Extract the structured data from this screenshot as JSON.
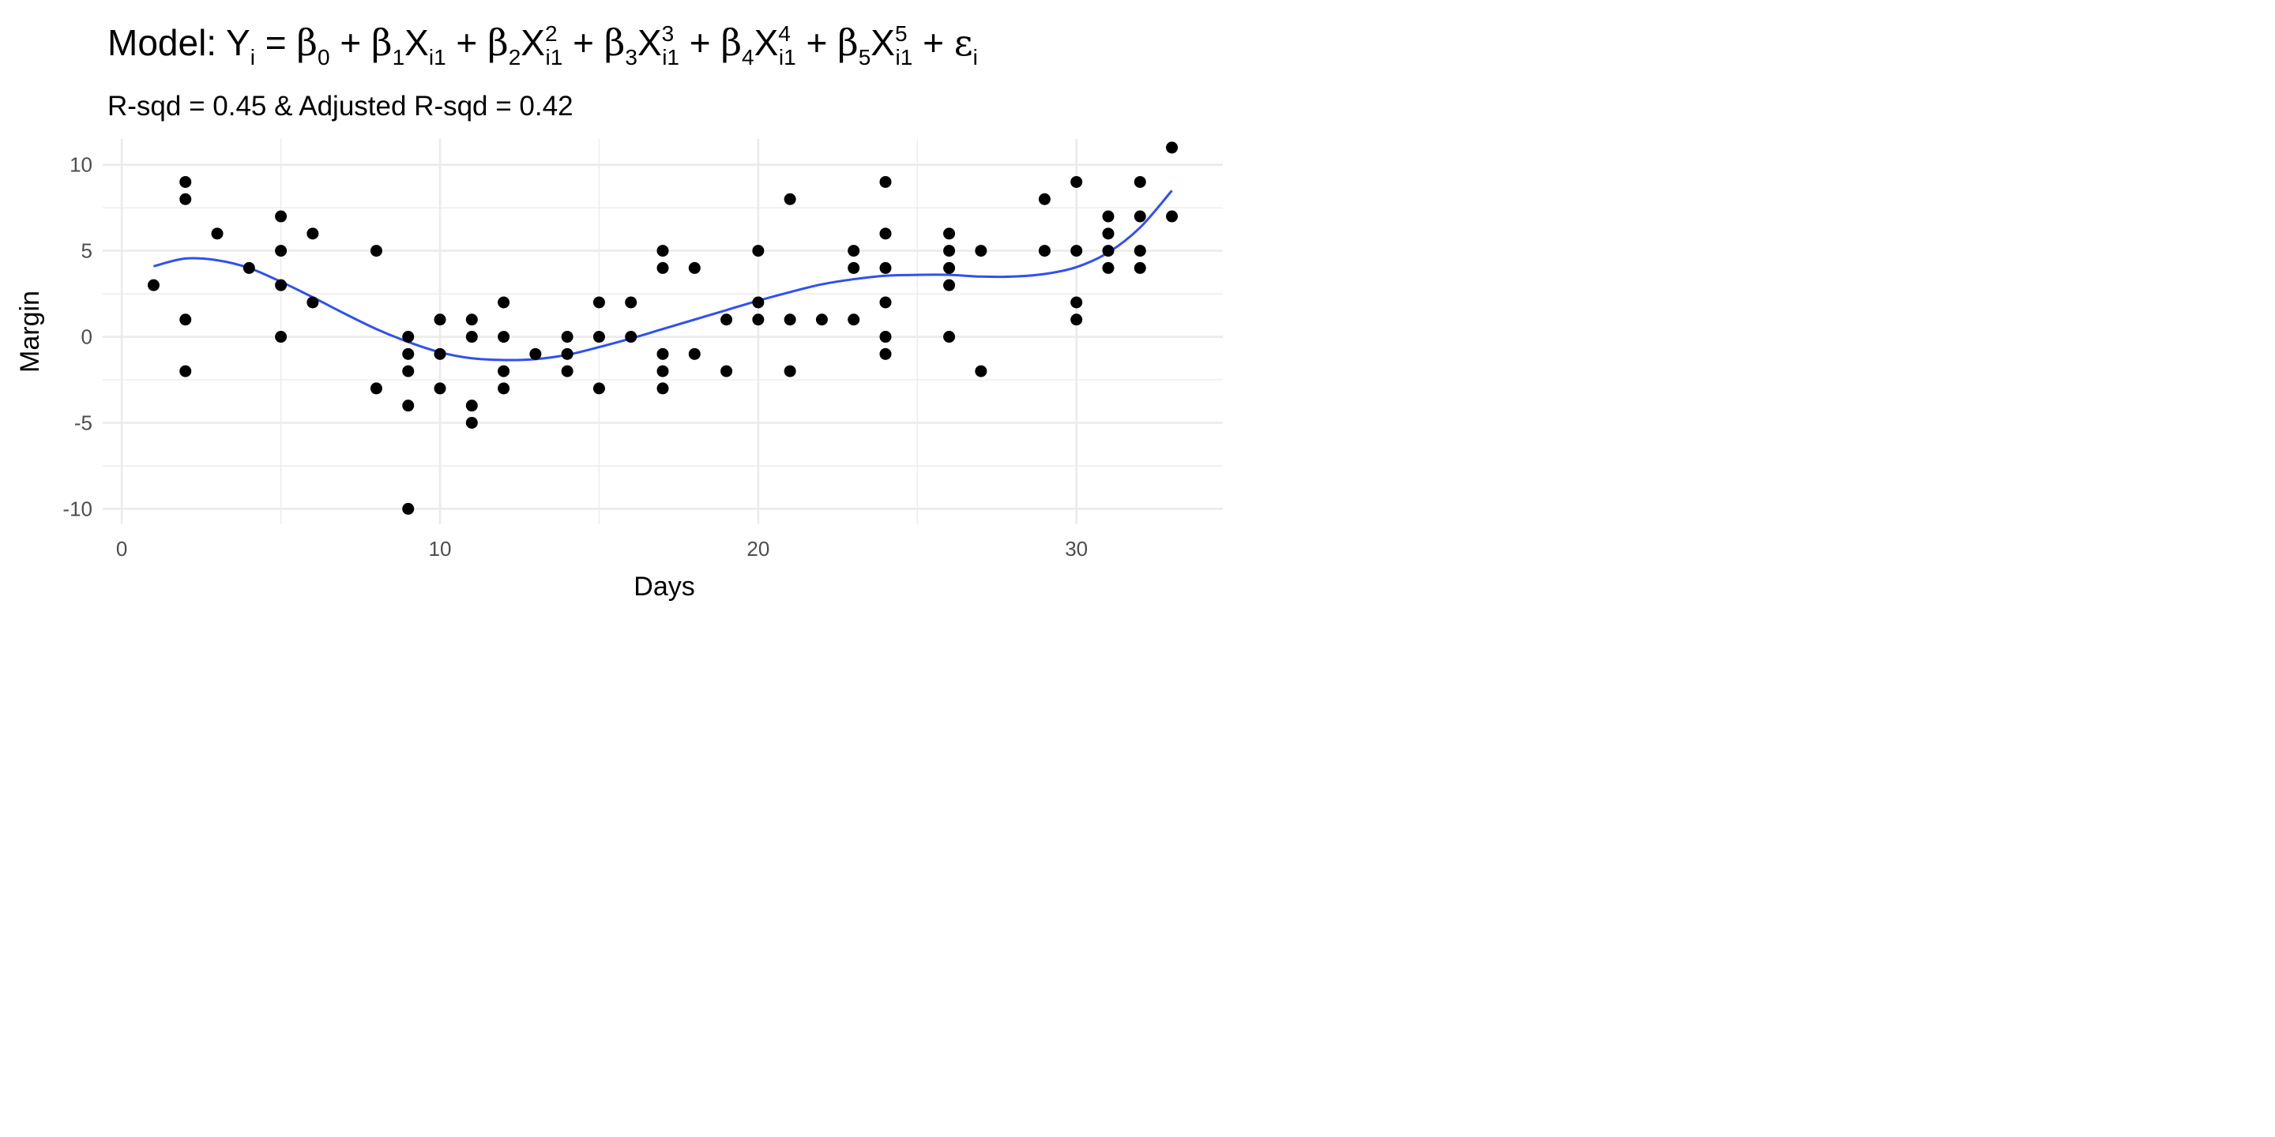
{
  "chart_data": {
    "type": "scatter",
    "title": "Model: Yᵢ = β₀ + β₁Xᵢ₁ + β₂Xᵢ₁² + β₃Xᵢ₁³ + β₄Xᵢ₁⁴ + β₅Xᵢ₁⁵ + εᵢ",
    "title_parts": {
      "lead": "Model: ",
      "y": "Y",
      "i": "i",
      "eq": " = ",
      "beta": "β",
      "x": "X",
      "i1": "i1",
      "plus": " + ",
      "eps": "ε",
      "b0": "0",
      "b1": "1",
      "b2": "2",
      "b3": "3",
      "b4": "4",
      "b5": "5",
      "p2": "2",
      "p3": "3",
      "p4": "4",
      "p5": "5"
    },
    "subtitle": "R-sqd = 0.45 & Adjusted R-sqd = 0.42",
    "xlabel": "Days",
    "ylabel": "Margin",
    "xlim": [
      -0.6,
      34.6
    ],
    "ylim": [
      -10.9,
      11.5
    ],
    "xticks": [
      "0",
      "10",
      "20",
      "30"
    ],
    "xtick_values": [
      0,
      10,
      20,
      30
    ],
    "yticks": [
      "10",
      "5",
      "0",
      "-5",
      "-10"
    ],
    "ytick_values": [
      10,
      5,
      0,
      -5,
      -10
    ],
    "grid": true,
    "legend": "none",
    "colors": {
      "points": "#000000",
      "fit": "#3050f0",
      "grid": "#ebebeb"
    },
    "points": [
      {
        "x": 1,
        "y": 3
      },
      {
        "x": 2,
        "y": 9
      },
      {
        "x": 2,
        "y": 8
      },
      {
        "x": 2,
        "y": 1
      },
      {
        "x": 2,
        "y": -2
      },
      {
        "x": 3,
        "y": 6
      },
      {
        "x": 4,
        "y": 4
      },
      {
        "x": 5,
        "y": 7
      },
      {
        "x": 5,
        "y": 5
      },
      {
        "x": 5,
        "y": 3
      },
      {
        "x": 5,
        "y": 0
      },
      {
        "x": 6,
        "y": 6
      },
      {
        "x": 6,
        "y": 2
      },
      {
        "x": 8,
        "y": 5
      },
      {
        "x": 8,
        "y": -3
      },
      {
        "x": 9,
        "y": 0
      },
      {
        "x": 9,
        "y": -1
      },
      {
        "x": 9,
        "y": -2
      },
      {
        "x": 9,
        "y": -4
      },
      {
        "x": 9,
        "y": -10
      },
      {
        "x": 10,
        "y": 1
      },
      {
        "x": 10,
        "y": -1
      },
      {
        "x": 10,
        "y": -3
      },
      {
        "x": 11,
        "y": 1
      },
      {
        "x": 11,
        "y": 0
      },
      {
        "x": 11,
        "y": -4
      },
      {
        "x": 11,
        "y": -5
      },
      {
        "x": 12,
        "y": 2
      },
      {
        "x": 12,
        "y": 0
      },
      {
        "x": 12,
        "y": -2
      },
      {
        "x": 12,
        "y": -3
      },
      {
        "x": 13,
        "y": -1
      },
      {
        "x": 14,
        "y": 0
      },
      {
        "x": 14,
        "y": -1
      },
      {
        "x": 14,
        "y": -2
      },
      {
        "x": 15,
        "y": 2
      },
      {
        "x": 15,
        "y": 0
      },
      {
        "x": 15,
        "y": -3
      },
      {
        "x": 16,
        "y": 2
      },
      {
        "x": 16,
        "y": 0
      },
      {
        "x": 17,
        "y": 5
      },
      {
        "x": 17,
        "y": 4
      },
      {
        "x": 17,
        "y": -1
      },
      {
        "x": 17,
        "y": -2
      },
      {
        "x": 17,
        "y": -3
      },
      {
        "x": 18,
        "y": 4
      },
      {
        "x": 18,
        "y": -1
      },
      {
        "x": 19,
        "y": 1
      },
      {
        "x": 19,
        "y": -2
      },
      {
        "x": 20,
        "y": 5
      },
      {
        "x": 20,
        "y": 2
      },
      {
        "x": 20,
        "y": 1
      },
      {
        "x": 21,
        "y": 8
      },
      {
        "x": 21,
        "y": 1
      },
      {
        "x": 21,
        "y": -2
      },
      {
        "x": 22,
        "y": 1
      },
      {
        "x": 23,
        "y": 5
      },
      {
        "x": 23,
        "y": 4
      },
      {
        "x": 23,
        "y": 1
      },
      {
        "x": 24,
        "y": 9
      },
      {
        "x": 24,
        "y": 6
      },
      {
        "x": 24,
        "y": 4
      },
      {
        "x": 24,
        "y": 2
      },
      {
        "x": 24,
        "y": 0
      },
      {
        "x": 24,
        "y": -1
      },
      {
        "x": 26,
        "y": 6
      },
      {
        "x": 26,
        "y": 5
      },
      {
        "x": 26,
        "y": 4
      },
      {
        "x": 26,
        "y": 3
      },
      {
        "x": 26,
        "y": 0
      },
      {
        "x": 27,
        "y": 5
      },
      {
        "x": 27,
        "y": -2
      },
      {
        "x": 29,
        "y": 8
      },
      {
        "x": 29,
        "y": 5
      },
      {
        "x": 30,
        "y": 9
      },
      {
        "x": 30,
        "y": 5
      },
      {
        "x": 30,
        "y": 2
      },
      {
        "x": 30,
        "y": 1
      },
      {
        "x": 31,
        "y": 7
      },
      {
        "x": 31,
        "y": 6
      },
      {
        "x": 31,
        "y": 5
      },
      {
        "x": 31,
        "y": 4
      },
      {
        "x": 32,
        "y": 9
      },
      {
        "x": 32,
        "y": 7
      },
      {
        "x": 32,
        "y": 5
      },
      {
        "x": 32,
        "y": 4
      },
      {
        "x": 33,
        "y": 11
      },
      {
        "x": 33,
        "y": 7
      }
    ],
    "fit_line": [
      {
        "x": 1,
        "y": 4.1
      },
      {
        "x": 2,
        "y": 4.55
      },
      {
        "x": 3,
        "y": 4.45
      },
      {
        "x": 4,
        "y": 4.0
      },
      {
        "x": 5,
        "y": 3.2
      },
      {
        "x": 6,
        "y": 2.3
      },
      {
        "x": 7,
        "y": 1.35
      },
      {
        "x": 8,
        "y": 0.45
      },
      {
        "x": 9,
        "y": -0.3
      },
      {
        "x": 10,
        "y": -0.9
      },
      {
        "x": 11,
        "y": -1.25
      },
      {
        "x": 12,
        "y": -1.35
      },
      {
        "x": 13,
        "y": -1.3
      },
      {
        "x": 14,
        "y": -1.05
      },
      {
        "x": 15,
        "y": -0.6
      },
      {
        "x": 16,
        "y": -0.1
      },
      {
        "x": 17,
        "y": 0.45
      },
      {
        "x": 18,
        "y": 1.0
      },
      {
        "x": 19,
        "y": 1.55
      },
      {
        "x": 20,
        "y": 2.1
      },
      {
        "x": 21,
        "y": 2.6
      },
      {
        "x": 22,
        "y": 3.05
      },
      {
        "x": 23,
        "y": 3.35
      },
      {
        "x": 24,
        "y": 3.55
      },
      {
        "x": 25,
        "y": 3.6
      },
      {
        "x": 26,
        "y": 3.6
      },
      {
        "x": 27,
        "y": 3.5
      },
      {
        "x": 28,
        "y": 3.5
      },
      {
        "x": 29,
        "y": 3.65
      },
      {
        "x": 30,
        "y": 4.05
      },
      {
        "x": 31,
        "y": 4.9
      },
      {
        "x": 32,
        "y": 6.35
      },
      {
        "x": 33,
        "y": 8.5
      }
    ]
  }
}
